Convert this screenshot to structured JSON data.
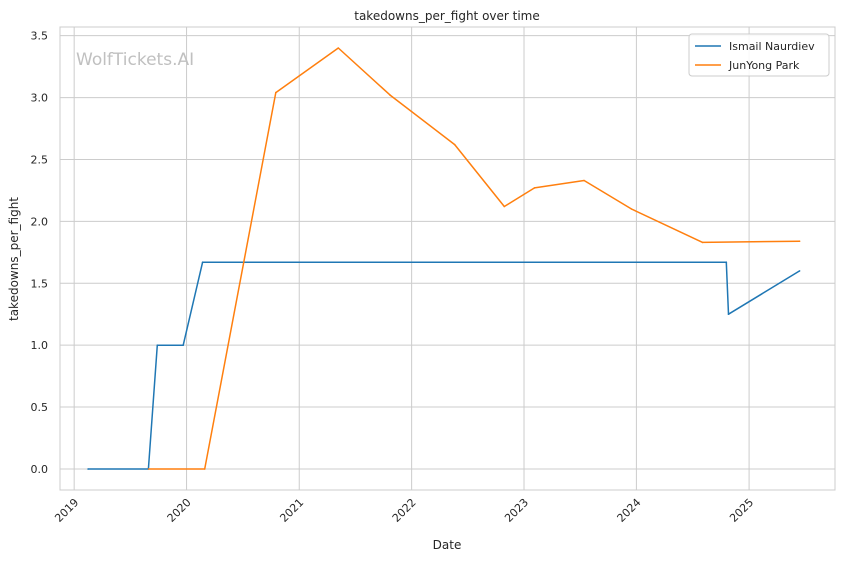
{
  "chart_data": {
    "type": "line",
    "title": "takedowns_per_fight over time",
    "xlabel": "Date",
    "ylabel": "takedowns_per_fight",
    "watermark": "WolfTickets.AI",
    "x_ticks": [
      "2019",
      "2020",
      "2021",
      "2022",
      "2023",
      "2024",
      "2025"
    ],
    "y_ticks": [
      "0.0",
      "0.5",
      "1.0",
      "1.5",
      "2.0",
      "2.5",
      "3.0",
      "3.5"
    ],
    "xlim": [
      "2018-11-16",
      "2025-10-07"
    ],
    "ylim": [
      -0.17,
      3.57
    ],
    "grid": true,
    "legend_position": "top-right",
    "series": [
      {
        "name": "Ismail Naurdiev",
        "color": "#1f77b4",
        "points": [
          {
            "x": "2019-02-15",
            "y": 0.0
          },
          {
            "x": "2019-08-30",
            "y": 0.0
          },
          {
            "x": "2019-09-28",
            "y": 1.0
          },
          {
            "x": "2019-12-21",
            "y": 1.0
          },
          {
            "x": "2020-02-22",
            "y": 1.67
          },
          {
            "x": "2024-10-19",
            "y": 1.67
          },
          {
            "x": "2024-10-26",
            "y": 1.25
          },
          {
            "x": "2025-06-14",
            "y": 1.6
          }
        ]
      },
      {
        "name": "JunYong Park",
        "color": "#ff7f0e",
        "points": [
          {
            "x": "2019-08-31",
            "y": 0.0
          },
          {
            "x": "2020-02-29",
            "y": 0.0
          },
          {
            "x": "2020-10-17",
            "y": 3.04
          },
          {
            "x": "2021-05-08",
            "y": 3.4
          },
          {
            "x": "2021-10-23",
            "y": 3.02
          },
          {
            "x": "2022-05-21",
            "y": 2.62
          },
          {
            "x": "2022-10-29",
            "y": 2.12
          },
          {
            "x": "2023-02-04",
            "y": 2.27
          },
          {
            "x": "2023-07-15",
            "y": 2.33
          },
          {
            "x": "2023-12-16",
            "y": 2.1
          },
          {
            "x": "2024-08-03",
            "y": 1.83
          },
          {
            "x": "2025-06-14",
            "y": 1.84
          }
        ]
      }
    ]
  }
}
